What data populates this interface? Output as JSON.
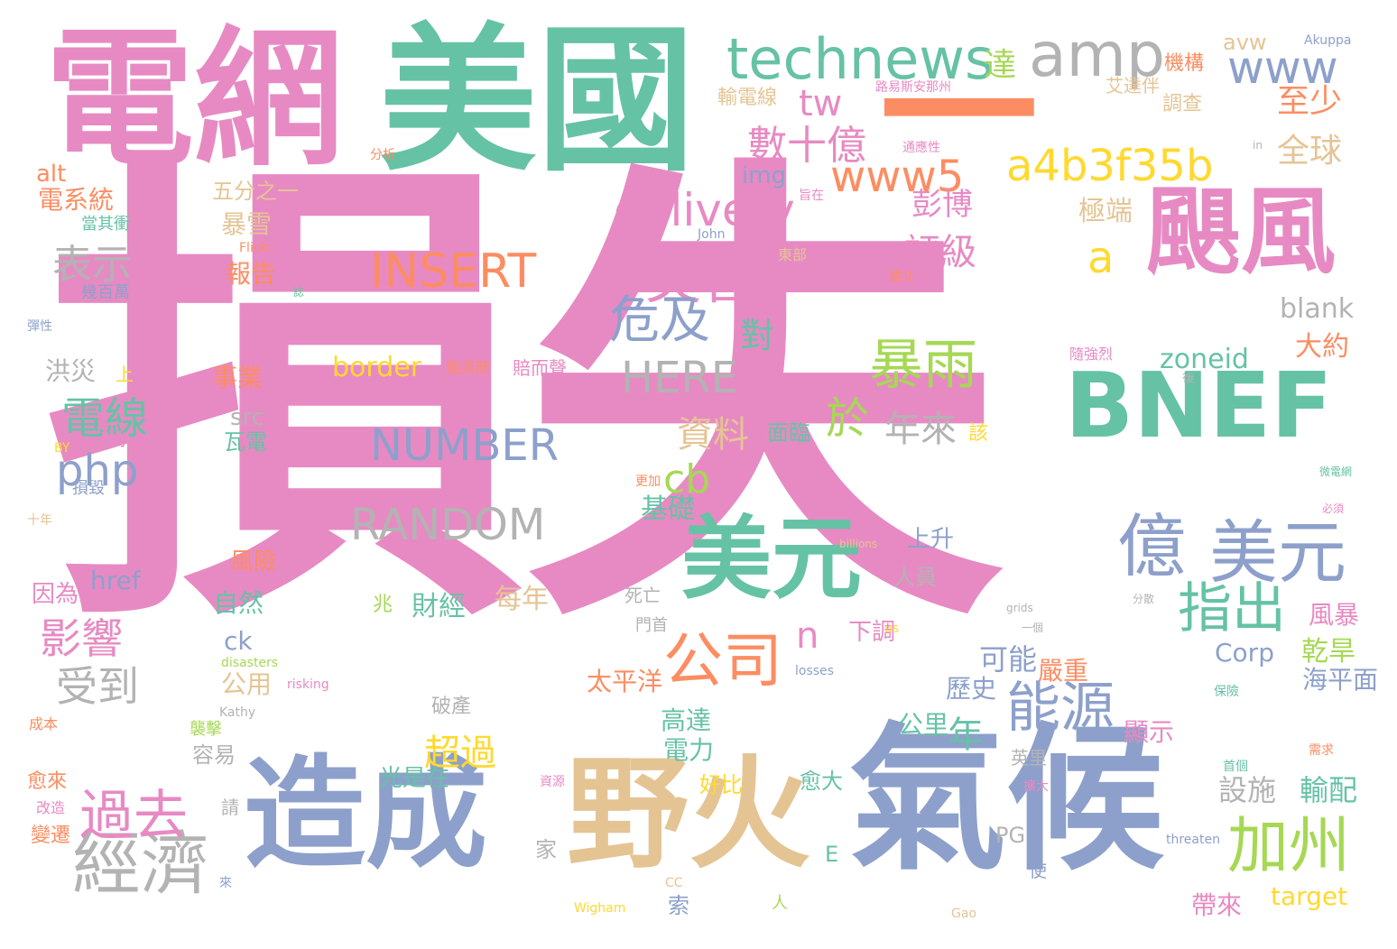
{
  "words": [
    {
      "text": "損失",
      "color": "#e78ac3"
    },
    {
      "text": "美國",
      "color": "#66c2a5"
    },
    {
      "text": "電網",
      "color": "#e78ac3"
    },
    {
      "text": "一",
      "color": "#fc8d62"
    },
    {
      "text": "氣候",
      "color": "#8da0cb"
    },
    {
      "text": "造成",
      "color": "#8da0cb"
    },
    {
      "text": "野火",
      "color": "#e5c494"
    },
    {
      "text": "BNEF",
      "color": "#66c2a5"
    },
    {
      "text": "颶風",
      "color": "#e78ac3"
    },
    {
      "text": "美元",
      "color": "#66c2a5"
    },
    {
      "text": "amp",
      "color": "#b3b3b3"
    },
    {
      "text": "technews",
      "color": "#66c2a5"
    },
    {
      "text": "a4b3f35b",
      "color": "#ffd92f"
    },
    {
      "text": "www5",
      "color": "#fc8d62"
    },
    {
      "text": "www",
      "color": "#8da0cb"
    },
    {
      "text": "INSERT",
      "color": "#fc8d62"
    },
    {
      "text": "億",
      "color": "#8da0cb"
    },
    {
      "text": "美元",
      "color": "#8da0cb"
    },
    {
      "text": "加州",
      "color": "#a6d854"
    },
    {
      "text": "經濟",
      "color": "#b3b3b3"
    },
    {
      "text": "過去",
      "color": "#e78ac3"
    },
    {
      "text": "能源",
      "color": "#8da0cb"
    },
    {
      "text": "指出",
      "color": "#66c2a5"
    },
    {
      "text": "公司",
      "color": "#fc8d62"
    },
    {
      "text": "災害",
      "color": "#e78ac3"
    },
    {
      "text": "delivery",
      "color": "#e78ac3"
    },
    {
      "text": "暴雨",
      "color": "#a6d854"
    },
    {
      "text": "NUMBER",
      "color": "#8da0cb"
    },
    {
      "text": "RANDOM",
      "color": "#b3b3b3"
    },
    {
      "text": "HERE",
      "color": "#b3b3b3"
    },
    {
      "text": "危及",
      "color": "#8da0cb"
    },
    {
      "text": "數十億",
      "color": "#e78ac3"
    },
    {
      "text": "php",
      "color": "#8da0cb"
    },
    {
      "text": "a",
      "color": "#ffd92f"
    },
    {
      "text": "電線",
      "color": "#66c2a5"
    },
    {
      "text": "表示",
      "color": "#b3b3b3"
    },
    {
      "text": "影響",
      "color": "#e78ac3"
    },
    {
      "text": "受到",
      "color": "#b3b3b3"
    },
    {
      "text": "超過",
      "color": "#ffd92f"
    },
    {
      "text": "年",
      "color": "#66c2a5"
    },
    {
      "text": "cb",
      "color": "#a6d854"
    },
    {
      "text": "於",
      "color": "#a6d854"
    },
    {
      "text": "資料",
      "color": "#e5c494"
    },
    {
      "text": "年來",
      "color": "#b3b3b3"
    },
    {
      "text": "評級",
      "color": "#e78ac3"
    },
    {
      "text": "tw",
      "color": "#e78ac3"
    },
    {
      "text": "達",
      "color": "#a6d854"
    },
    {
      "text": "至少",
      "color": "#fc8d62"
    },
    {
      "text": "全球",
      "color": "#e5c494"
    },
    {
      "text": "zoneid",
      "color": "#66c2a5"
    },
    {
      "text": "border",
      "color": "#ffd92f"
    },
    {
      "text": "n",
      "color": "#e78ac3"
    },
    {
      "text": "對",
      "color": "#66c2a5"
    },
    {
      "text": "blank",
      "color": "#b3b3b3"
    },
    {
      "text": "彭博",
      "color": "#e78ac3"
    },
    {
      "text": "極端",
      "color": "#e5c494"
    },
    {
      "text": "大約",
      "color": "#fc8d62"
    },
    {
      "text": "乾旱",
      "color": "#a6d854"
    },
    {
      "text": "海平面",
      "color": "#8da0cb"
    },
    {
      "text": "風暴",
      "color": "#e78ac3"
    },
    {
      "text": "Corp",
      "color": "#8da0cb"
    },
    {
      "text": "可能",
      "color": "#8da0cb"
    },
    {
      "text": "嚴重",
      "color": "#fc8d62"
    },
    {
      "text": "歷史",
      "color": "#8da0cb"
    },
    {
      "text": "公里",
      "color": "#66c2a5"
    },
    {
      "text": "顯示",
      "color": "#e78ac3"
    },
    {
      "text": "設施",
      "color": "#b3b3b3"
    },
    {
      "text": "輸配",
      "color": "#66c2a5"
    },
    {
      "text": "target",
      "color": "#ffd92f"
    },
    {
      "text": "帶來",
      "color": "#e78ac3"
    },
    {
      "text": "電系統",
      "color": "#fc8d62"
    },
    {
      "text": "alt",
      "color": "#fc8d62"
    },
    {
      "text": "五分之一",
      "color": "#e5c494"
    },
    {
      "text": "暴雪",
      "color": "#e5c494"
    },
    {
      "text": "報告",
      "color": "#fc8d62"
    },
    {
      "text": "洪災",
      "color": "#b3b3b3"
    },
    {
      "text": "事業",
      "color": "#fc8d62"
    },
    {
      "text": "src",
      "color": "#b3b3b3"
    },
    {
      "text": "瓦電",
      "color": "#66c2a5"
    },
    {
      "text": "基礎",
      "color": "#66c2a5"
    },
    {
      "text": "上升",
      "color": "#8da0cb"
    },
    {
      "text": "人員",
      "color": "#b3b3b3"
    },
    {
      "text": "下調",
      "color": "#e78ac3"
    },
    {
      "text": "面臨",
      "color": "#66c2a5"
    },
    {
      "text": "href",
      "color": "#8da0cb"
    },
    {
      "text": "因為",
      "color": "#e78ac3"
    },
    {
      "text": "風險",
      "color": "#fc8d62"
    },
    {
      "text": "每年",
      "color": "#e5c494"
    },
    {
      "text": "財經",
      "color": "#66c2a5"
    },
    {
      "text": "自然",
      "color": "#66c2a5"
    },
    {
      "text": "ck",
      "color": "#8da0cb"
    },
    {
      "text": "公用",
      "color": "#e5c494"
    },
    {
      "text": "太平洋",
      "color": "#fc8d62"
    },
    {
      "text": "高達",
      "color": "#66c2a5"
    },
    {
      "text": "電力",
      "color": "#66c2a5"
    },
    {
      "text": "好比",
      "color": "#ffd92f"
    },
    {
      "text": "容易",
      "color": "#b3b3b3"
    },
    {
      "text": "光是在",
      "color": "#66c2a5"
    },
    {
      "text": "家",
      "color": "#b3b3b3"
    },
    {
      "text": "愈大",
      "color": "#66c2a5"
    },
    {
      "text": "索",
      "color": "#8da0cb"
    },
    {
      "text": "img",
      "color": "#8da0cb"
    },
    {
      "text": "avw",
      "color": "#e5c494"
    },
    {
      "text": "機構",
      "color": "#fc8d62"
    },
    {
      "text": "調查",
      "color": "#e5c494"
    },
    {
      "text": "輸電線",
      "color": "#e5c494"
    },
    {
      "text": "艾達伴",
      "color": "#e5c494"
    },
    {
      "text": "幾百萬",
      "color": "#8da0cb"
    },
    {
      "text": "當其衝",
      "color": "#66c2a5"
    },
    {
      "text": "彈性",
      "color": "#8da0cb"
    },
    {
      "text": "上",
      "color": "#ffd92f"
    },
    {
      "text": "洪水",
      "color": "#e78ac3"
    },
    {
      "text": "損毀",
      "color": "#8da0cb"
    },
    {
      "text": "十年",
      "color": "#e5c494"
    },
    {
      "text": "賠而聲",
      "color": "#e78ac3"
    },
    {
      "text": "能源部",
      "color": "#fc8d62"
    },
    {
      "text": "隨強烈",
      "color": "#e78ac3"
    },
    {
      "text": "後",
      "color": "#b3b3b3"
    },
    {
      "text": "Climate",
      "color": "#e78ac3"
    },
    {
      "text": "該",
      "color": "#ffd92f"
    },
    {
      "text": "成本",
      "color": "#fc8d62"
    },
    {
      "text": "襲擊",
      "color": "#a6d854"
    },
    {
      "text": "愈來",
      "color": "#fc8d62"
    },
    {
      "text": "改造",
      "color": "#e78ac3"
    },
    {
      "text": "變遷",
      "color": "#fc8d62"
    },
    {
      "text": "請",
      "color": "#b3b3b3"
    },
    {
      "text": "兆",
      "color": "#a6d854"
    },
    {
      "text": "死亡",
      "color": "#b3b3b3"
    },
    {
      "text": "門首",
      "color": "#b3b3b3"
    },
    {
      "text": "破產",
      "color": "#b3b3b3"
    },
    {
      "text": "E",
      "color": "#66c2a5"
    },
    {
      "text": "PG",
      "color": "#b3b3b3"
    },
    {
      "text": "使",
      "color": "#8da0cb"
    },
    {
      "text": "英里",
      "color": "#b3b3b3"
    },
    {
      "text": "分析",
      "color": "#fc8d62"
    },
    {
      "text": "通應性",
      "color": "#e78ac3"
    },
    {
      "text": "路易斯安那州",
      "color": "#e78ac3"
    },
    {
      "text": "Akuppa",
      "color": "#8da0cb"
    },
    {
      "text": "in",
      "color": "#b3b3b3"
    },
    {
      "text": "Flickr",
      "color": "#fc8d62"
    },
    {
      "text": "John",
      "color": "#8da0cb"
    },
    {
      "text": "東部",
      "color": "#e5c494"
    },
    {
      "text": "技術",
      "color": "#e78ac3"
    },
    {
      "text": "建立",
      "color": "#fc8d62"
    },
    {
      "text": "誌",
      "color": "#66c2a5"
    },
    {
      "text": "旨在",
      "color": "#e78ac3"
    },
    {
      "text": "BY",
      "color": "#ffd92f"
    },
    {
      "text": "更加",
      "color": "#fc8d62"
    },
    {
      "text": "微電網",
      "color": "#66c2a5"
    },
    {
      "text": "必須",
      "color": "#e78ac3"
    },
    {
      "text": "billions",
      "color": "#e5c494"
    },
    {
      "text": "分散",
      "color": "#b3b3b3"
    },
    {
      "text": "grids",
      "color": "#b3b3b3"
    },
    {
      "text": "一個",
      "color": "#b3b3b3"
    },
    {
      "text": "us",
      "color": "#ffd92f"
    },
    {
      "text": "disasters",
      "color": "#a6d854"
    },
    {
      "text": "risking",
      "color": "#e78ac3"
    },
    {
      "text": "losses",
      "color": "#8da0cb"
    },
    {
      "text": "Kathy",
      "color": "#b3b3b3"
    },
    {
      "text": "來",
      "color": "#8da0cb"
    },
    {
      "text": "需求",
      "color": "#fc8d62"
    },
    {
      "text": "資源",
      "color": "#e78ac3"
    },
    {
      "text": "首個",
      "color": "#66c2a5"
    },
    {
      "text": "擴大",
      "color": "#e78ac3"
    },
    {
      "text": "threaten",
      "color": "#8da0cb"
    },
    {
      "text": "CC",
      "color": "#e5c494"
    },
    {
      "text": "Wigham",
      "color": "#ffd92f"
    },
    {
      "text": "人",
      "color": "#a6d854"
    },
    {
      "text": "Gao",
      "color": "#e5c494"
    },
    {
      "text": "保險",
      "color": "#66c2a5"
    }
  ]
}
